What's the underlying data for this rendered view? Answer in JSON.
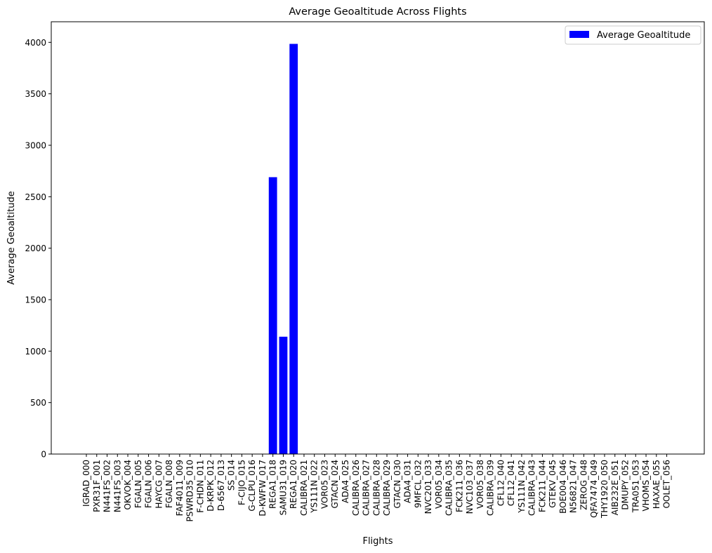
{
  "chart_data": {
    "type": "bar",
    "title": "Average Geoaltitude Across Flights",
    "xlabel": "Flights",
    "ylabel": "Average Geoaltitude",
    "ylim": [
      0,
      4200
    ],
    "yticks": [
      0,
      500,
      1000,
      1500,
      2000,
      2500,
      3000,
      3500,
      4000
    ],
    "grid": false,
    "legend": "top-right",
    "categories": [
      "IGRAD_000",
      "PXR31F_001",
      "N441FS_002",
      "N441FS_003",
      "OKVOK_004",
      "FGALN_005",
      "FGALN_006",
      "HAYCG_007",
      "FGALN_008",
      "FAF4011_009",
      "PSWRD35_010",
      "F-CHDN_011",
      "D-KRPK_012",
      "D-6567_013",
      "SS_014",
      "F-CIJO_015",
      "G-CLPU_016",
      "D-KWFW_017",
      "REGA1_018",
      "SAMU31_019",
      "REGA1_020",
      "CALIBRA_021",
      "YS111N_022",
      "VOR05_023",
      "GTACN_024",
      "ADA4_025",
      "CALIBRA_026",
      "CALIBRA_027",
      "CALIBRA_028",
      "CALIBRA_029",
      "GTACN_030",
      "ADA4_031",
      "9MFCL_032",
      "NVC201_033",
      "VOR05_034",
      "CALIBRA_035",
      "FCK211_036",
      "NVC103_037",
      "VOR05_038",
      "CALIBRA_039",
      "CFL12_040",
      "CFL12_041",
      "YS111N_042",
      "CALIBRA_043",
      "FCK211_044",
      "GTEKV_045",
      "BOE004_046",
      "N56821_047",
      "ZEROG_048",
      "QFA7474_049",
      "THY1920_050",
      "AIB232E_051",
      "DMUPY_052",
      "TRA051_053",
      "VHOMS_054",
      "HAXAE_055",
      "OOLET_056"
    ],
    "series": [
      {
        "name": "Average Geoaltitude",
        "color": "#0000ff",
        "values": [
          0,
          0,
          0,
          0,
          0,
          0,
          0,
          0,
          0,
          0,
          0,
          0,
          0,
          0,
          0,
          0,
          0,
          0,
          2690,
          1140,
          3985,
          0,
          0,
          0,
          0,
          0,
          0,
          0,
          0,
          0,
          0,
          0,
          0,
          0,
          0,
          0,
          0,
          0,
          0,
          0,
          0,
          0,
          0,
          0,
          0,
          0,
          0,
          0,
          0,
          0,
          0,
          0,
          0,
          0,
          0,
          0,
          0
        ]
      }
    ]
  }
}
